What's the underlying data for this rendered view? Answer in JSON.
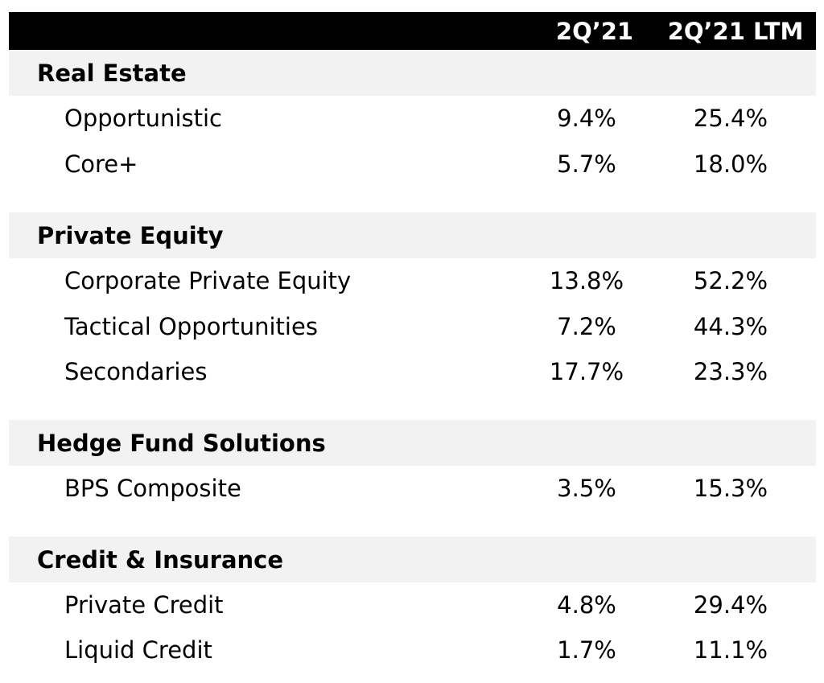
{
  "header": {
    "col1": "2Q’21",
    "col2": "2Q’21 LTM"
  },
  "sections": [
    {
      "label": "Real Estate",
      "rows": [
        {
          "label": "Opportunistic",
          "q": "9.4%",
          "ltm": "25.4%"
        },
        {
          "label": "Core+",
          "q": "5.7%",
          "ltm": "18.0%"
        }
      ]
    },
    {
      "label": "Private Equity",
      "rows": [
        {
          "label": "Corporate Private Equity",
          "q": "13.8%",
          "ltm": "52.2%"
        },
        {
          "label": "Tactical Opportunities",
          "q": "7.2%",
          "ltm": "44.3%"
        },
        {
          "label": "Secondaries",
          "q": "17.7%",
          "ltm": "23.3%"
        }
      ]
    },
    {
      "label": "Hedge Fund Solutions",
      "rows": [
        {
          "label": "BPS Composite",
          "q": "3.5%",
          "ltm": "15.3%"
        }
      ]
    },
    {
      "label": "Credit & Insurance",
      "rows": [
        {
          "label": "Private Credit",
          "q": "4.8%",
          "ltm": "29.4%"
        },
        {
          "label": "Liquid Credit",
          "q": "1.7%",
          "ltm": "11.1%"
        }
      ]
    }
  ]
}
